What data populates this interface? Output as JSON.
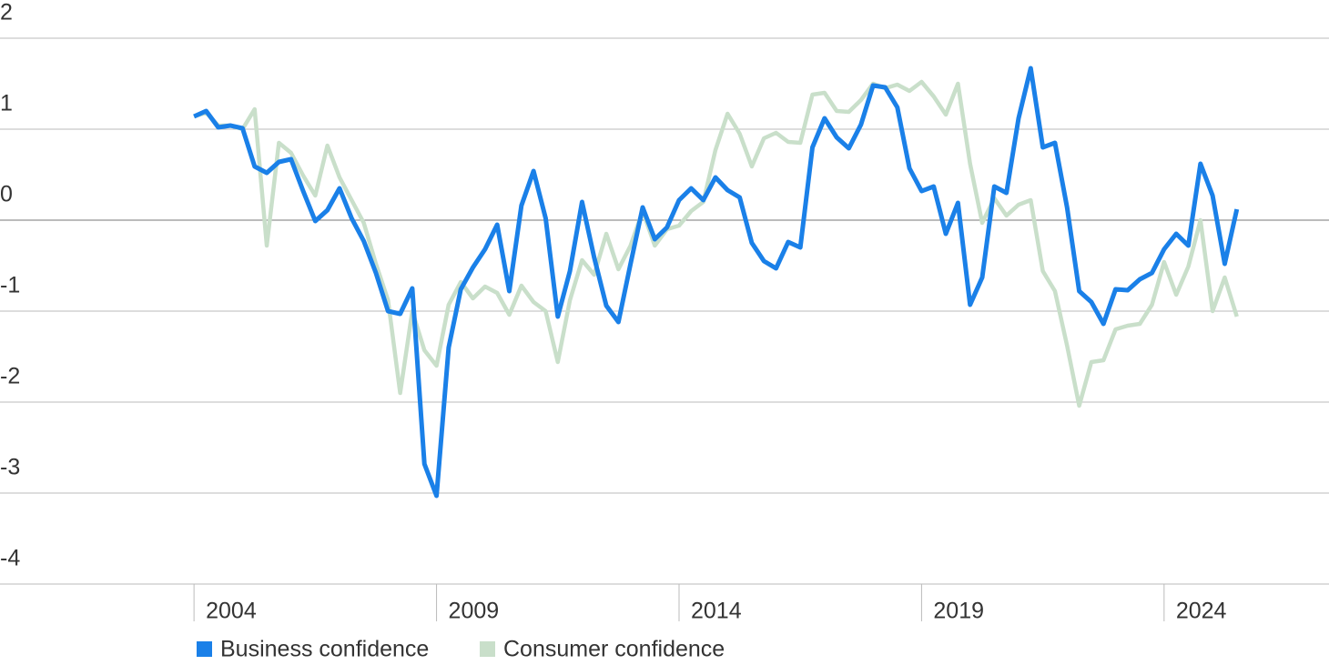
{
  "chart_data": {
    "type": "line",
    "x": [
      2004,
      2004.25,
      2004.5,
      2004.75,
      2005,
      2005.25,
      2005.5,
      2005.75,
      2006,
      2006.25,
      2006.5,
      2006.75,
      2007,
      2007.25,
      2007.5,
      2007.75,
      2008,
      2008.25,
      2008.5,
      2008.75,
      2009,
      2009.25,
      2009.5,
      2009.75,
      2010,
      2010.25,
      2010.5,
      2010.75,
      2011,
      2011.25,
      2011.5,
      2011.75,
      2012,
      2012.25,
      2012.5,
      2012.75,
      2013,
      2013.25,
      2013.5,
      2013.75,
      2014,
      2014.25,
      2014.5,
      2014.75,
      2015,
      2015.25,
      2015.5,
      2015.75,
      2016,
      2016.25,
      2016.5,
      2016.75,
      2017,
      2017.25,
      2017.5,
      2017.75,
      2018,
      2018.25,
      2018.5,
      2018.75,
      2019,
      2019.25,
      2019.5,
      2019.75,
      2020,
      2020.25,
      2020.5,
      2020.75,
      2021,
      2021.25,
      2021.5,
      2021.75,
      2022,
      2022.25,
      2022.5,
      2022.75,
      2023,
      2023.25,
      2023.5,
      2023.75,
      2024,
      2024.25,
      2024.5,
      2024.75,
      2025,
      2025.25,
      2025.5
    ],
    "series": [
      {
        "name": "Business confidence",
        "color": "#1a80e8",
        "values": [
          1.14,
          1.2,
          1.02,
          1.04,
          1.01,
          0.59,
          0.52,
          0.64,
          0.67,
          0.32,
          -0.01,
          0.11,
          0.35,
          0.02,
          -0.23,
          -0.58,
          -1.0,
          -1.03,
          -0.75,
          -2.68,
          -3.03,
          -1.4,
          -0.76,
          -0.52,
          -0.32,
          -0.05,
          -0.78,
          0.16,
          0.54,
          0.02,
          -1.06,
          -0.56,
          0.2,
          -0.41,
          -0.94,
          -1.12,
          -0.48,
          0.14,
          -0.21,
          -0.08,
          0.22,
          0.35,
          0.22,
          0.47,
          0.33,
          0.25,
          -0.25,
          -0.45,
          -0.53,
          -0.24,
          -0.3,
          0.8,
          1.12,
          0.91,
          0.79,
          1.05,
          1.48,
          1.46,
          1.24,
          0.57,
          0.32,
          0.37,
          -0.15,
          0.19,
          -0.93,
          -0.63,
          0.37,
          0.3,
          1.12,
          1.67,
          0.8,
          0.85,
          0.14,
          -0.78,
          -0.9,
          -1.14,
          -0.76,
          -0.77,
          -0.65,
          -0.58,
          -0.32,
          -0.15,
          -0.28,
          0.62,
          0.27,
          -0.48,
          0.12
        ]
      },
      {
        "name": "Consumer confidence",
        "color": "#c9dfca",
        "values": [
          1.14,
          1.18,
          1.04,
          1.04,
          1.0,
          1.22,
          -0.28,
          0.85,
          0.74,
          0.49,
          0.27,
          0.82,
          0.47,
          0.22,
          -0.03,
          -0.48,
          -0.88,
          -1.9,
          -1.0,
          -1.43,
          -1.6,
          -0.93,
          -0.68,
          -0.86,
          -0.73,
          -0.8,
          -1.04,
          -0.72,
          -0.9,
          -1.0,
          -1.56,
          -0.88,
          -0.44,
          -0.6,
          -0.15,
          -0.54,
          -0.28,
          0.1,
          -0.28,
          -0.1,
          -0.06,
          0.1,
          0.2,
          0.77,
          1.17,
          0.95,
          0.59,
          0.9,
          0.96,
          0.86,
          0.85,
          1.38,
          1.4,
          1.2,
          1.19,
          1.32,
          1.5,
          1.45,
          1.49,
          1.42,
          1.52,
          1.36,
          1.16,
          1.5,
          0.62,
          -0.03,
          0.24,
          0.05,
          0.17,
          0.22,
          -0.56,
          -0.78,
          -1.38,
          -2.04,
          -1.56,
          -1.54,
          -1.2,
          -1.16,
          -1.14,
          -0.93,
          -0.46,
          -0.82,
          -0.51,
          0.0,
          -1.0,
          -0.63,
          -1.06
        ]
      }
    ],
    "xlim": [
      2000,
      2027.4
    ],
    "xticks": [
      2004,
      2009,
      2014,
      2019,
      2024
    ],
    "ylim": [
      -4,
      2
    ],
    "yticks": [
      2,
      1,
      0,
      -1,
      -2,
      -3,
      -4
    ],
    "grid": true
  }
}
